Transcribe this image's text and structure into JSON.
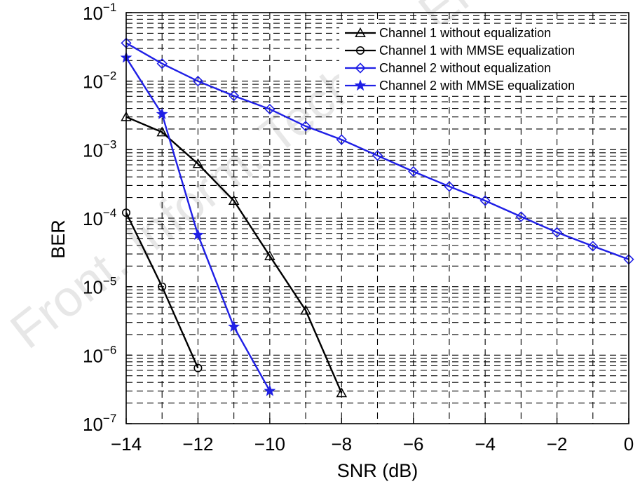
{
  "chart_data": {
    "type": "line",
    "title": "",
    "xlabel": "SNR (dB)",
    "ylabel": "BER",
    "y_scale": "log",
    "xlim": [
      -14,
      0
    ],
    "ylim": [
      1e-07,
      0.1
    ],
    "x_ticks": [
      -14,
      -12,
      -10,
      -8,
      -6,
      -4,
      -2,
      0
    ],
    "x_tick_labels": [
      "−14",
      "−12",
      "−10",
      "−8",
      "−6",
      "−4",
      "−2",
      "0"
    ],
    "y_ticks": [
      {
        "value": 0.1,
        "base": "10",
        "exp": "−1"
      },
      {
        "value": 0.01,
        "base": "10",
        "exp": "−2"
      },
      {
        "value": 0.001,
        "base": "10",
        "exp": "−3"
      },
      {
        "value": 0.0001,
        "base": "10",
        "exp": "−4"
      },
      {
        "value": 1e-05,
        "base": "10",
        "exp": "−5"
      },
      {
        "value": 1e-06,
        "base": "10",
        "exp": "−6"
      },
      {
        "value": 1e-07,
        "base": "10",
        "exp": "−7"
      }
    ],
    "grid": true,
    "grid_style": "dashed, major and minor",
    "legend_position": "top-right",
    "series": [
      {
        "name": "Channel 1 without equalization",
        "color": "#000000",
        "marker": "triangle",
        "x": [
          -14,
          -13,
          -12,
          -11,
          -10,
          -9,
          -8
        ],
        "y": [
          0.003,
          0.0018,
          0.00062,
          0.00018,
          2.8e-05,
          4.5e-06,
          2.8e-07
        ]
      },
      {
        "name": "Channel 1 with MMSE equalization",
        "color": "#000000",
        "marker": "circle",
        "x": [
          -14,
          -13,
          -12
        ],
        "y": [
          0.00012,
          1e-05,
          6.5e-07
        ]
      },
      {
        "name": "Channel 2 without equalization",
        "color": "#1f1fe6",
        "marker": "diamond",
        "x": [
          -14,
          -13,
          -12,
          -11,
          -10,
          -9,
          -8,
          -7,
          -6,
          -5,
          -4,
          -3,
          -2,
          -1,
          0
        ],
        "y": [
          0.036,
          0.018,
          0.01,
          0.0061,
          0.0039,
          0.0022,
          0.0014,
          0.00082,
          0.00048,
          0.00029,
          0.00018,
          0.000105,
          6.2e-05,
          3.9e-05,
          2.5e-05
        ]
      },
      {
        "name": "Channel 2 with MMSE equalization",
        "color": "#1f1fe6",
        "marker": "star",
        "x": [
          -14,
          -13,
          -12,
          -11,
          -10
        ],
        "y": [
          0.022,
          0.0033,
          5.7e-05,
          2.6e-06,
          3e-07
        ]
      }
    ],
    "watermark": "Front. Inform. Technol. Electron. Eng."
  }
}
